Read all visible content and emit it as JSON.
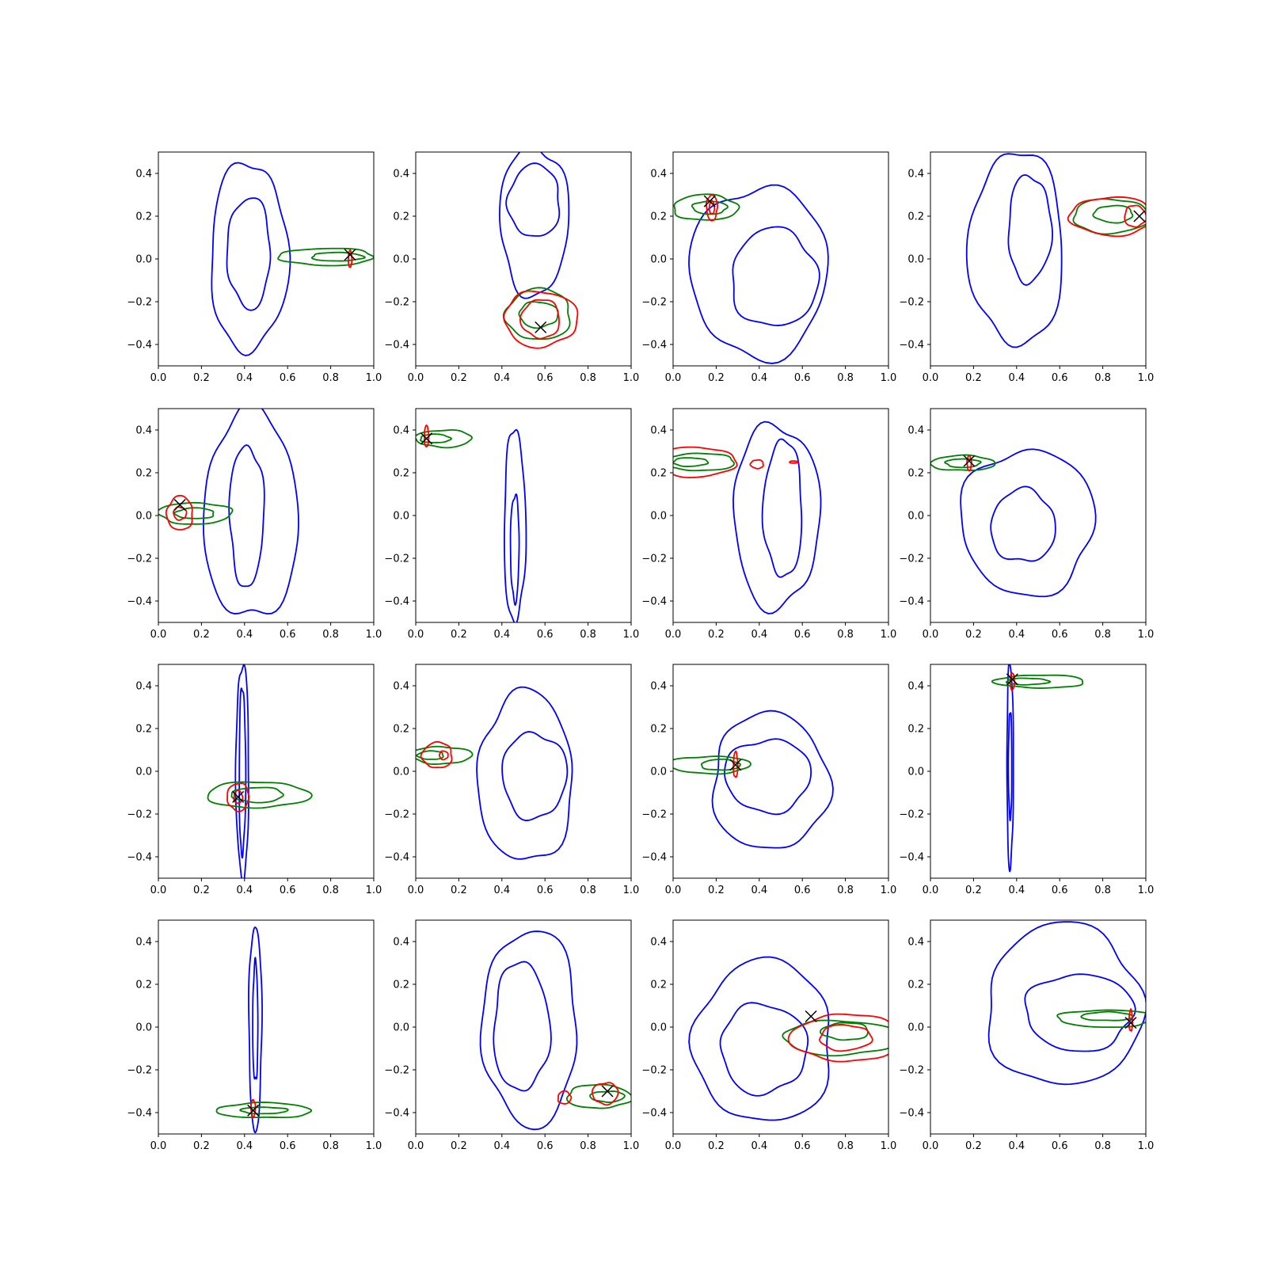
{
  "chart_data": {
    "type": "contour-grid",
    "rows": 4,
    "cols": 4,
    "colors": {
      "blue": "#0000ff",
      "green": "#008000",
      "red": "#ff0000",
      "marker": "#000000"
    },
    "xlim": [
      0.0,
      1.0
    ],
    "ylim": [
      -0.5,
      0.5
    ],
    "xticks": [
      0.0,
      0.2,
      0.4,
      0.6,
      0.8,
      1.0
    ],
    "yticks": [
      -0.4,
      -0.2,
      0.0,
      0.2,
      0.4
    ],
    "xtick_labels": [
      "0.0",
      "0.2",
      "0.4",
      "0.6",
      "0.8",
      "1.0"
    ],
    "ytick_labels": [
      "−0.4",
      "−0.2",
      "0.0",
      "0.2",
      "0.4"
    ],
    "panels": [
      {
        "blue": [
          {
            "cx": 0.42,
            "cy": 0.01,
            "rx": 0.18,
            "ry": 0.44
          },
          {
            "cx": 0.42,
            "cy": 0.03,
            "rx": 0.1,
            "ry": 0.26
          }
        ],
        "green": [
          {
            "cx": 0.78,
            "cy": 0.01,
            "rx": 0.22,
            "ry": 0.04
          },
          {
            "cx": 0.83,
            "cy": 0.01,
            "rx": 0.12,
            "ry": 0.02
          }
        ],
        "red": [
          {
            "cx": 0.89,
            "cy": 0.0,
            "rx": 0.008,
            "ry": 0.04
          }
        ],
        "marker": {
          "x": 0.89,
          "y": 0.02
        }
      },
      {
        "blue": [
          {
            "cx": 0.55,
            "cy": 0.18,
            "rx": 0.16,
            "ry": 0.35
          },
          {
            "cx": 0.55,
            "cy": 0.27,
            "rx": 0.12,
            "ry": 0.17
          }
        ],
        "green": [
          {
            "cx": 0.57,
            "cy": -0.26,
            "rx": 0.15,
            "ry": 0.12
          },
          {
            "cx": 0.57,
            "cy": -0.26,
            "rx": 0.09,
            "ry": 0.06
          }
        ],
        "red": [
          {
            "cx": 0.58,
            "cy": -0.28,
            "rx": 0.17,
            "ry": 0.13
          },
          {
            "cx": 0.58,
            "cy": -0.28,
            "rx": 0.09,
            "ry": 0.09
          }
        ],
        "marker": {
          "x": 0.58,
          "y": -0.32
        }
      },
      {
        "blue": [
          {
            "cx": 0.4,
            "cy": -0.06,
            "rx": 0.32,
            "ry": 0.4
          },
          {
            "cx": 0.47,
            "cy": -0.09,
            "rx": 0.2,
            "ry": 0.23
          }
        ],
        "green": [
          {
            "cx": 0.15,
            "cy": 0.24,
            "rx": 0.15,
            "ry": 0.06
          },
          {
            "cx": 0.17,
            "cy": 0.24,
            "rx": 0.08,
            "ry": 0.03
          }
        ],
        "red": [
          {
            "cx": 0.18,
            "cy": 0.24,
            "rx": 0.025,
            "ry": 0.06
          },
          {
            "cx": 0.18,
            "cy": 0.24,
            "rx": 0.012,
            "ry": 0.03
          }
        ],
        "marker": {
          "x": 0.17,
          "y": 0.27
        }
      },
      {
        "blue": [
          {
            "cx": 0.4,
            "cy": 0.05,
            "rx": 0.22,
            "ry": 0.45
          },
          {
            "cx": 0.46,
            "cy": 0.14,
            "rx": 0.1,
            "ry": 0.25
          }
        ],
        "green": [
          {
            "cx": 0.84,
            "cy": 0.2,
            "rx": 0.18,
            "ry": 0.08
          },
          {
            "cx": 0.85,
            "cy": 0.21,
            "rx": 0.09,
            "ry": 0.04
          }
        ],
        "red": [
          {
            "cx": 0.84,
            "cy": 0.2,
            "rx": 0.19,
            "ry": 0.09
          },
          {
            "cx": 0.95,
            "cy": 0.2,
            "rx": 0.05,
            "ry": 0.05
          }
        ],
        "marker": {
          "x": 0.97,
          "y": 0.2
        }
      },
      {
        "blue": [
          {
            "cx": 0.43,
            "cy": 0.0,
            "rx": 0.22,
            "ry": 0.49
          },
          {
            "cx": 0.41,
            "cy": 0.0,
            "rx": 0.08,
            "ry": 0.33
          }
        ],
        "green": [
          {
            "cx": 0.17,
            "cy": 0.01,
            "rx": 0.17,
            "ry": 0.05
          },
          {
            "cx": 0.17,
            "cy": 0.01,
            "rx": 0.09,
            "ry": 0.025
          }
        ],
        "red": [
          {
            "cx": 0.1,
            "cy": 0.01,
            "rx": 0.06,
            "ry": 0.08
          },
          {
            "cx": 0.1,
            "cy": 0.01,
            "rx": 0.03,
            "ry": 0.03
          }
        ],
        "marker": {
          "x": 0.1,
          "y": 0.05
        }
      },
      {
        "blue": [
          {
            "cx": 0.46,
            "cy": -0.05,
            "rx": 0.05,
            "ry": 0.45
          },
          {
            "cx": 0.46,
            "cy": -0.15,
            "rx": 0.02,
            "ry": 0.25
          }
        ],
        "green": [
          {
            "cx": 0.13,
            "cy": 0.36,
            "rx": 0.13,
            "ry": 0.04
          },
          {
            "cx": 0.09,
            "cy": 0.36,
            "rx": 0.07,
            "ry": 0.02
          }
        ],
        "red": [
          {
            "cx": 0.05,
            "cy": 0.37,
            "rx": 0.01,
            "ry": 0.05
          }
        ],
        "marker": {
          "x": 0.05,
          "y": 0.36
        }
      },
      {
        "blue": [
          {
            "cx": 0.48,
            "cy": 0.0,
            "rx": 0.2,
            "ry": 0.43
          },
          {
            "cx": 0.51,
            "cy": 0.03,
            "rx": 0.09,
            "ry": 0.32
          }
        ],
        "green": [
          {
            "cx": 0.12,
            "cy": 0.25,
            "rx": 0.17,
            "ry": 0.04
          },
          {
            "cx": 0.08,
            "cy": 0.25,
            "rx": 0.08,
            "ry": 0.02
          }
        ],
        "red": [
          {
            "cx": 0.11,
            "cy": 0.25,
            "rx": 0.18,
            "ry": 0.07
          },
          {
            "cx": 0.39,
            "cy": 0.24,
            "rx": 0.03,
            "ry": 0.02
          },
          {
            "cx": 0.56,
            "cy": 0.25,
            "rx": 0.02,
            "ry": 0.005
          }
        ],
        "marker": null
      },
      {
        "blue": [
          {
            "cx": 0.45,
            "cy": -0.03,
            "rx": 0.31,
            "ry": 0.34
          },
          {
            "cx": 0.43,
            "cy": -0.05,
            "rx": 0.15,
            "ry": 0.17
          }
        ],
        "green": [
          {
            "cx": 0.15,
            "cy": 0.245,
            "rx": 0.15,
            "ry": 0.035
          },
          {
            "cx": 0.15,
            "cy": 0.245,
            "rx": 0.08,
            "ry": 0.02
          }
        ],
        "red": [
          {
            "cx": 0.18,
            "cy": 0.245,
            "rx": 0.01,
            "ry": 0.035
          }
        ],
        "marker": {
          "x": 0.18,
          "y": 0.255
        }
      },
      {
        "blue": [
          {
            "cx": 0.39,
            "cy": 0.0,
            "rx": 0.03,
            "ry": 0.5
          },
          {
            "cx": 0.39,
            "cy": 0.0,
            "rx": 0.015,
            "ry": 0.39
          }
        ],
        "green": [
          {
            "cx": 0.46,
            "cy": -0.11,
            "rx": 0.24,
            "ry": 0.06
          },
          {
            "cx": 0.46,
            "cy": -0.11,
            "rx": 0.12,
            "ry": 0.035
          }
        ],
        "red": [
          {
            "cx": 0.37,
            "cy": -0.12,
            "rx": 0.05,
            "ry": 0.065
          },
          {
            "cx": 0.37,
            "cy": -0.12,
            "rx": 0.02,
            "ry": 0.03
          }
        ],
        "marker": {
          "x": 0.37,
          "y": -0.12
        }
      },
      {
        "blue": [
          {
            "cx": 0.51,
            "cy": -0.03,
            "rx": 0.22,
            "ry": 0.4
          },
          {
            "cx": 0.55,
            "cy": -0.02,
            "rx": 0.15,
            "ry": 0.2
          }
        ],
        "green": [
          {
            "cx": 0.12,
            "cy": 0.075,
            "rx": 0.14,
            "ry": 0.04
          },
          {
            "cx": 0.07,
            "cy": 0.075,
            "rx": 0.06,
            "ry": 0.02
          }
        ],
        "red": [
          {
            "cx": 0.1,
            "cy": 0.075,
            "rx": 0.07,
            "ry": 0.06
          },
          {
            "cx": 0.13,
            "cy": 0.075,
            "rx": 0.02,
            "ry": 0.02
          }
        ],
        "marker": null
      },
      {
        "blue": [
          {
            "cx": 0.45,
            "cy": -0.05,
            "rx": 0.27,
            "ry": 0.32
          },
          {
            "cx": 0.44,
            "cy": -0.02,
            "rx": 0.2,
            "ry": 0.17
          }
        ],
        "green": [
          {
            "cx": 0.17,
            "cy": 0.03,
            "rx": 0.19,
            "ry": 0.04
          },
          {
            "cx": 0.22,
            "cy": 0.03,
            "rx": 0.09,
            "ry": 0.025
          }
        ],
        "red": [
          {
            "cx": 0.29,
            "cy": 0.03,
            "rx": 0.01,
            "ry": 0.06
          }
        ],
        "marker": {
          "x": 0.29,
          "y": 0.03
        }
      },
      {
        "blue": [
          {
            "cx": 0.37,
            "cy": 0.03,
            "rx": 0.015,
            "ry": 0.48
          },
          {
            "cx": 0.37,
            "cy": 0.03,
            "rx": 0.008,
            "ry": 0.25
          }
        ],
        "green": [
          {
            "cx": 0.51,
            "cy": 0.42,
            "rx": 0.21,
            "ry": 0.03
          },
          {
            "cx": 0.45,
            "cy": 0.42,
            "rx": 0.1,
            "ry": 0.015
          }
        ],
        "red": [
          {
            "cx": 0.38,
            "cy": 0.42,
            "rx": 0.01,
            "ry": 0.04
          }
        ],
        "marker": {
          "x": 0.38,
          "y": 0.43
        }
      },
      {
        "blue": [
          {
            "cx": 0.45,
            "cy": 0.0,
            "rx": 0.03,
            "ry": 0.48
          },
          {
            "cx": 0.45,
            "cy": 0.02,
            "rx": 0.012,
            "ry": 0.28
          }
        ],
        "green": [
          {
            "cx": 0.49,
            "cy": -0.39,
            "rx": 0.22,
            "ry": 0.035
          },
          {
            "cx": 0.49,
            "cy": -0.39,
            "rx": 0.11,
            "ry": 0.015
          }
        ],
        "red": [
          {
            "cx": 0.44,
            "cy": -0.38,
            "rx": 0.01,
            "ry": 0.04
          }
        ],
        "marker": {
          "x": 0.44,
          "y": -0.39
        }
      },
      {
        "blue": [
          {
            "cx": 0.53,
            "cy": 0.0,
            "rx": 0.22,
            "ry": 0.46
          },
          {
            "cx": 0.49,
            "cy": 0.0,
            "rx": 0.13,
            "ry": 0.3
          }
        ],
        "green": [
          {
            "cx": 0.85,
            "cy": -0.325,
            "rx": 0.15,
            "ry": 0.055
          },
          {
            "cx": 0.89,
            "cy": -0.325,
            "rx": 0.08,
            "ry": 0.025
          }
        ],
        "red": [
          {
            "cx": 0.88,
            "cy": -0.31,
            "rx": 0.06,
            "ry": 0.05
          },
          {
            "cx": 0.69,
            "cy": -0.33,
            "rx": 0.03,
            "ry": 0.03
          }
        ],
        "marker": {
          "x": 0.89,
          "y": -0.3
        }
      },
      {
        "blue": [
          {
            "cx": 0.42,
            "cy": -0.07,
            "rx": 0.32,
            "ry": 0.38
          },
          {
            "cx": 0.42,
            "cy": -0.1,
            "rx": 0.2,
            "ry": 0.21
          }
        ],
        "green": [
          {
            "cx": 0.78,
            "cy": -0.05,
            "rx": 0.27,
            "ry": 0.08
          },
          {
            "cx": 0.8,
            "cy": -0.02,
            "rx": 0.11,
            "ry": 0.04
          }
        ],
        "red": [
          {
            "cx": 0.8,
            "cy": -0.05,
            "rx": 0.25,
            "ry": 0.11
          },
          {
            "cx": 0.8,
            "cy": -0.05,
            "rx": 0.12,
            "ry": 0.06
          }
        ],
        "marker": {
          "x": 0.64,
          "y": 0.05
        }
      },
      {
        "blue": [
          {
            "cx": 0.62,
            "cy": 0.1,
            "rx": 0.36,
            "ry": 0.38
          },
          {
            "cx": 0.69,
            "cy": 0.07,
            "rx": 0.25,
            "ry": 0.18
          }
        ],
        "green": [
          {
            "cx": 0.82,
            "cy": 0.04,
            "rx": 0.23,
            "ry": 0.04
          },
          {
            "cx": 0.82,
            "cy": 0.05,
            "rx": 0.12,
            "ry": 0.02
          }
        ],
        "red": [
          {
            "cx": 0.93,
            "cy": 0.03,
            "rx": 0.008,
            "ry": 0.05
          }
        ],
        "marker": {
          "x": 0.93,
          "y": 0.02
        }
      }
    ]
  }
}
